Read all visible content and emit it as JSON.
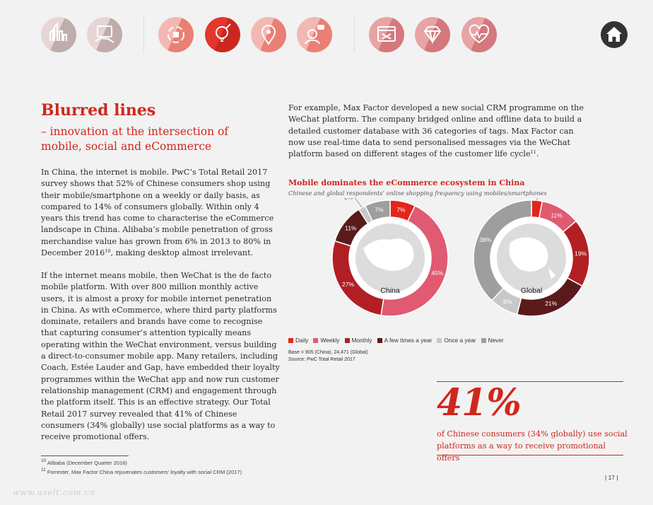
{
  "nav": {
    "icons": [
      {
        "name": "city-skyline-icon",
        "fill": "#e6d6d6",
        "band": "#a38a8a"
      },
      {
        "name": "devices-hand-icon",
        "fill": "#e6d6d6",
        "band": "#a38a8a"
      },
      {
        "name": "retail-cycle-icon",
        "fill": "#f3b8b2",
        "band": "#e0523f"
      },
      {
        "name": "innovation-bulb-icon",
        "fill": "#e4372b",
        "band": "#b51d15"
      },
      {
        "name": "location-pin-icon",
        "fill": "#f3b8b2",
        "band": "#e0523f"
      },
      {
        "name": "customer-chat-icon",
        "fill": "#f3b8b2",
        "band": "#e0523f"
      },
      {
        "name": "browser-tools-icon",
        "fill": "#e8a3a5",
        "band": "#c2555c"
      },
      {
        "name": "diamond-icon",
        "fill": "#e8a3a5",
        "band": "#c2555c"
      },
      {
        "name": "heart-pulse-icon",
        "fill": "#e8a3a5",
        "band": "#c2555c"
      }
    ],
    "home_icon": "home-icon"
  },
  "heading": {
    "title": "Blurred lines",
    "subtitle": "– innovation at the intersection of mobile, social and eCommerce"
  },
  "paragraph1": {
    "text": "In China, the internet is mobile. PwC’s Total Retail 2017 survey shows that 52% of Chinese consumers shop using their mobile/smartphone on a weekly or daily basis, as compared to 14% of consumers globally. Within only 4 years this trend has come to characterise the eCommerce landscape in China. Alibaba’s mobile penetration of gross merchandise value has grown from 6% in 2013 to 80% in December 2016",
    "ref": "10",
    "tail": ", making desktop almost irrelevant."
  },
  "paragraph2": {
    "text": "If the internet means mobile, then WeChat is the de facto mobile platform. With over 800 million monthly active users, it is almost a proxy for mobile internet penetration in China. As with eCommerce, where third party platforms dominate, retailers and brands have come to recognise that capturing consumer’s attention typically means operating within the WeChat environment, versus building a direct-to-consumer mobile app. Many retailers, including Coach, Estée Lauder and Gap, have embedded their loyalty programmes within the WeChat app and now run customer relationship management (CRM) and engagement through the platform itself. This is an effective strategy. Our Total Retail 2017 survey revealed that 41% of Chinese consumers (34% globally) use social platforms as a way to receive promotional offers."
  },
  "paragraph3": {
    "text": "For example, Max Factor developed a new social CRM programme on the WeChat platform. The company bridged online and offline data to build a detailed customer database with 36 categories of tags. Max Factor can now use real-time data to send personalised messages via the WeChat platform based on different stages of the customer life cycle",
    "ref": "11",
    "tail": "."
  },
  "chart_data": {
    "type": "pie",
    "title": "Mobile dominates the eCommerce ecosystem in China",
    "subtitle": "Chinese and global respondents’ online shopping frequency using mobiles/smartphones",
    "categories": [
      "Daily",
      "Weekly",
      "Monthly",
      "A few times a year",
      "Once a year",
      "Never"
    ],
    "colors": [
      "#e3261c",
      "#e05a72",
      "#b11f24",
      "#5a1a1c",
      "#c8c8c8",
      "#9e9e9e"
    ],
    "series": [
      {
        "name": "China",
        "values": [
          7,
          45,
          27,
          11,
          2,
          7
        ],
        "labels": [
          "7%",
          "45%",
          "27%",
          "11%",
          "2%",
          "7%"
        ]
      },
      {
        "name": "Global",
        "values": [
          3,
          11,
          19,
          21,
          8,
          38
        ],
        "labels": [
          "3%",
          "11%",
          "19%",
          "21%",
          "8%",
          "38%"
        ]
      }
    ],
    "legend_position": "bottom",
    "base_note": "Base = 905 (China), 24,471 (Global)",
    "source": "Source: PwC Total Retail 2017"
  },
  "callout": {
    "value": "41%",
    "caption": "of Chinese consumers (34% globally) use social platforms as a way to receive promotional offers"
  },
  "footnotes": [
    {
      "num": "10",
      "text": "Alibaba (December Quarter 2016)"
    },
    {
      "num": "11",
      "text": "Forrester, Max Factor China rejuvenates customers’ loyalty with social CRM (2017)"
    }
  ],
  "page_number": "| 17 |",
  "watermark": "www.uselt.com.cn"
}
